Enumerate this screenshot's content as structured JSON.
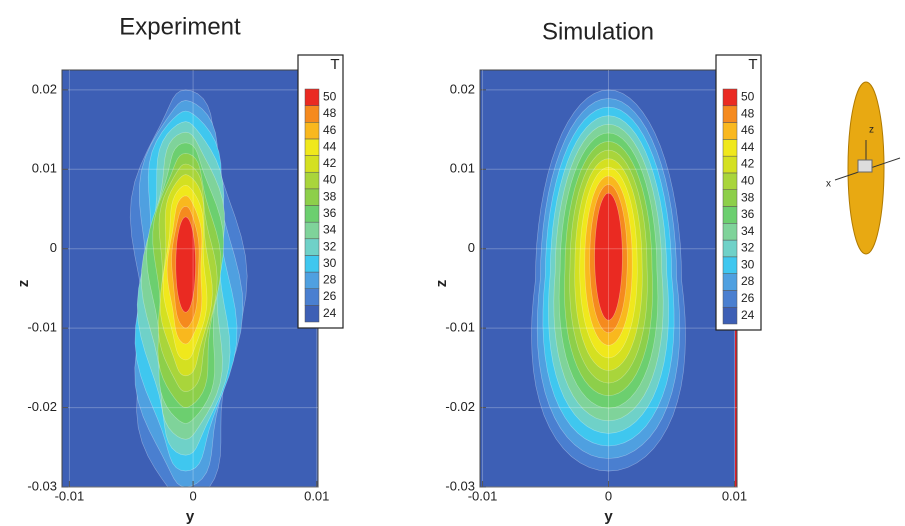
{
  "chart_data": [
    {
      "type": "contour",
      "title": "Experiment",
      "xlabel": "y",
      "ylabel": "z",
      "xlim": [
        -0.0106,
        0.0101
      ],
      "ylim": [
        -0.03,
        0.0225
      ],
      "xticks": [
        -0.01,
        0,
        0.01
      ],
      "yticks": [
        0.02,
        0.01,
        0,
        -0.01,
        -0.02,
        -0.03
      ],
      "legend_title": "T",
      "levels": [
        24,
        26,
        28,
        30,
        32,
        34,
        36,
        38,
        40,
        42,
        44,
        46,
        48,
        50
      ],
      "colors": [
        "#3d5fb5",
        "#4a7fd0",
        "#4fa0e0",
        "#3fc7ef",
        "#6fd1c8",
        "#7fd39a",
        "#6ccf6f",
        "#8dcf4a",
        "#a9d53b",
        "#d4e021",
        "#f0e81c",
        "#f9b81e",
        "#f58a1e",
        "#ea2a22"
      ]
    },
    {
      "type": "contour",
      "title": "Simulation",
      "xlabel": "y",
      "ylabel": "z",
      "xlim": [
        -0.0102,
        0.0102
      ],
      "ylim": [
        -0.03,
        0.0225
      ],
      "xticks": [
        -0.01,
        0,
        0.01
      ],
      "yticks": [
        0.02,
        0.01,
        0,
        -0.01,
        -0.02,
        -0.03
      ],
      "legend_title": "T",
      "levels": [
        24,
        26,
        28,
        30,
        32,
        34,
        36,
        38,
        40,
        42,
        44,
        46,
        48,
        50
      ],
      "colors": [
        "#3d5fb5",
        "#4a7fd0",
        "#4fa0e0",
        "#3fc7ef",
        "#6fd1c8",
        "#7fd39a",
        "#6ccf6f",
        "#8dcf4a",
        "#a9d53b",
        "#d4e021",
        "#f0e81c",
        "#f9b81e",
        "#f58a1e",
        "#ea2a22"
      ]
    }
  ],
  "axis_icon_labels": [
    "z",
    "x"
  ]
}
